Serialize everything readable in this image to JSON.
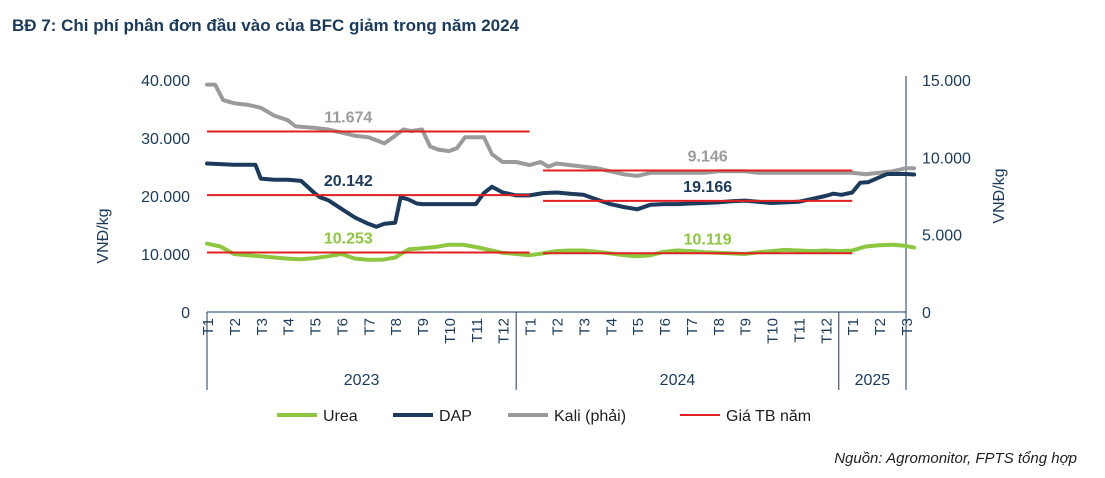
{
  "title": "BĐ 7: Chi phí phân đơn đầu vào của BFC giảm trong năm 2024",
  "source": "Nguồn: Agromonitor, FPTS tổng hợp",
  "chart_data": {
    "type": "line",
    "ylabel_left": "VNĐ/kg",
    "ylabel_right": "VNĐ/kg",
    "y_left": {
      "min": 0,
      "max": 40000,
      "ticks": [
        "0",
        "10.000",
        "20.000",
        "30.000",
        "40.000"
      ]
    },
    "y_right": {
      "min": 0,
      "max": 15000,
      "ticks": [
        "0",
        "5.000",
        "10.000",
        "15.000"
      ]
    },
    "x_ticks": [
      "T1",
      "T2",
      "T3",
      "T4",
      "T5",
      "T6",
      "T7",
      "T8",
      "T9",
      "T10",
      "T11",
      "T12",
      "T1",
      "T2",
      "T3",
      "T4",
      "T5",
      "T6",
      "T7",
      "T8",
      "T9",
      "T10",
      "T11",
      "T12",
      "T1",
      "T2",
      "T3"
    ],
    "years": [
      "2023",
      "2024",
      "2025"
    ],
    "grid": false,
    "legend_position": "bottom",
    "colors": {
      "urea": "#8dc63f",
      "dap": "#1b3a5c",
      "kali": "#9b9b9b",
      "avg": "#e02020",
      "axis": "#1b3a5c"
    },
    "legend": [
      "Urea",
      "DAP",
      "Kali (phải)",
      "Giá TB năm"
    ],
    "series": [
      {
        "name": "Urea",
        "axis": "left",
        "x": [
          1,
          1.5,
          2,
          2.5,
          3,
          3.5,
          4,
          4.5,
          5,
          5.5,
          6,
          6.5,
          7,
          7.5,
          8,
          8.5,
          9,
          9.5,
          10,
          10.5,
          11,
          11.5,
          12,
          12.5,
          13,
          13.5,
          14,
          14.5,
          15,
          15.5,
          16,
          16.5,
          17,
          17.5,
          18,
          18.5,
          19,
          19.5,
          20,
          20.5,
          21,
          21.5,
          22,
          22.5,
          23,
          23.5,
          24,
          24.5,
          25,
          25.5,
          26,
          26.5,
          27,
          27.3
        ],
        "values": [
          11800,
          11300,
          10000,
          9800,
          9600,
          9400,
          9200,
          9100,
          9300,
          9600,
          10000,
          9200,
          9000,
          9000,
          9400,
          10800,
          11000,
          11200,
          11600,
          11600,
          11200,
          10700,
          10200,
          10000,
          9800,
          10100,
          10500,
          10600,
          10600,
          10400,
          10100,
          9800,
          9600,
          9800,
          10400,
          10600,
          10500,
          10300,
          10200,
          10100,
          10000,
          10300,
          10500,
          10700,
          10600,
          10500,
          10600,
          10500,
          10600,
          11300,
          11500,
          11600,
          11400,
          11100
        ]
      },
      {
        "name": "DAP",
        "axis": "left",
        "x": [
          1,
          2,
          2.8,
          3,
          3.5,
          4,
          4.5,
          5,
          5.2,
          5.5,
          6,
          6.5,
          7,
          7.3,
          7.6,
          8,
          8.2,
          8.5,
          8.8,
          9,
          9.5,
          10,
          10.5,
          11,
          11.3,
          11.6,
          12,
          12.5,
          13,
          13.5,
          14,
          14.5,
          15,
          15.5,
          16,
          16.5,
          17,
          17.5,
          18,
          18.5,
          19,
          19.5,
          20,
          20.5,
          21,
          21.5,
          22,
          22.5,
          23,
          23.5,
          24,
          24.3,
          24.6,
          25,
          25.3,
          25.6,
          26,
          26.3,
          26.6,
          27,
          27.3
        ],
        "values": [
          25600,
          25400,
          25400,
          23000,
          22800,
          22800,
          22600,
          20500,
          19800,
          19300,
          17800,
          16300,
          15200,
          14700,
          15200,
          15400,
          19800,
          19400,
          18700,
          18600,
          18600,
          18600,
          18600,
          18600,
          20500,
          21600,
          20600,
          20100,
          20100,
          20500,
          20600,
          20400,
          20200,
          19400,
          18600,
          18100,
          17700,
          18500,
          18600,
          18600,
          18700,
          18800,
          18900,
          19100,
          19200,
          19000,
          18800,
          18900,
          19000,
          19500,
          20000,
          20400,
          20200,
          20600,
          22300,
          22400,
          23200,
          23800,
          23800,
          23800,
          23700
        ]
      },
      {
        "name": "Kali (phải)",
        "axis": "right",
        "x": [
          1,
          1.3,
          1.6,
          2,
          2.5,
          3,
          3.5,
          4,
          4.3,
          5,
          5.5,
          6,
          6.5,
          7,
          7.3,
          7.6,
          8,
          8.3,
          8.6,
          9,
          9.3,
          9.6,
          10,
          10.3,
          10.6,
          11,
          11.3,
          11.6,
          12,
          12.5,
          13,
          13.4,
          13.7,
          14,
          14.5,
          15,
          15.5,
          16,
          16.5,
          17,
          17.5,
          18,
          18.5,
          19,
          19.5,
          20,
          20.5,
          21,
          21.5,
          22,
          22.5,
          23,
          23.5,
          24,
          24.5,
          25,
          25.5,
          26,
          26.5,
          27,
          27.3
        ],
        "values": [
          14700,
          14700,
          13700,
          13500,
          13400,
          13200,
          12700,
          12400,
          12000,
          11900,
          11800,
          11600,
          11400,
          11300,
          11100,
          10900,
          11400,
          11800,
          11700,
          11800,
          10700,
          10500,
          10400,
          10600,
          11300,
          11300,
          11300,
          10200,
          9700,
          9700,
          9500,
          9700,
          9400,
          9600,
          9500,
          9400,
          9300,
          9100,
          8900,
          8800,
          9000,
          9000,
          9000,
          9000,
          9000,
          9100,
          9100,
          9100,
          9000,
          9000,
          9000,
          9000,
          9000,
          9000,
          9000,
          9000,
          8900,
          9000,
          9100,
          9300,
          9300
        ]
      }
    ],
    "averages": [
      {
        "axis": "left",
        "x": [
          1,
          13
        ],
        "value": 20142,
        "label": "20.142",
        "label_color": "#1b3a5c"
      },
      {
        "axis": "left",
        "x": [
          1,
          13
        ],
        "value": 10253,
        "label": "10.253",
        "label_color": "#8dc63f"
      },
      {
        "axis": "right",
        "x": [
          1,
          13
        ],
        "value": 11674,
        "label": "11.674",
        "label_color": "#9b9b9b"
      },
      {
        "axis": "left",
        "x": [
          13.5,
          25
        ],
        "value": 19166,
        "label": "19.166",
        "label_color": "#1b3a5c"
      },
      {
        "axis": "left",
        "x": [
          13.5,
          25
        ],
        "value": 10119,
        "label": "10.119",
        "label_color": "#8dc63f"
      },
      {
        "axis": "right",
        "x": [
          13.5,
          25
        ],
        "value": 9146,
        "label": "9.146",
        "label_color": "#9b9b9b"
      }
    ]
  }
}
